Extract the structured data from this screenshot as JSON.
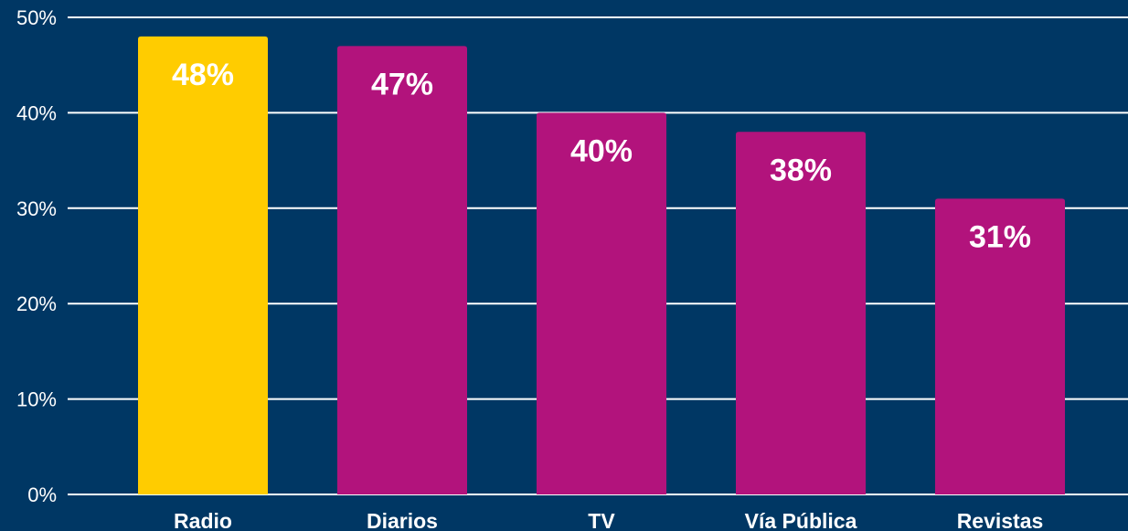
{
  "chart_data": {
    "type": "bar",
    "categories": [
      "Radio",
      "Diarios",
      "TV",
      "Vía Pública",
      "Revistas"
    ],
    "values": [
      48,
      47,
      40,
      38,
      31
    ],
    "data_labels": [
      "48%",
      "47%",
      "40%",
      "38%",
      "31%"
    ],
    "ylim": [
      0,
      50
    ],
    "yticks": [
      0,
      10,
      20,
      30,
      40,
      50
    ],
    "ytick_labels": [
      "0%",
      "10%",
      "20%",
      "30%",
      "40%",
      "50%"
    ],
    "grid": true,
    "title": "",
    "xlabel": "",
    "ylabel": "",
    "colors": {
      "background": "#003764",
      "highlight_bar": "#FFCC00",
      "bar": "#B2137C",
      "text": "#FFFFFF",
      "grid": "#FFFFFF"
    },
    "highlight_index": 0
  }
}
